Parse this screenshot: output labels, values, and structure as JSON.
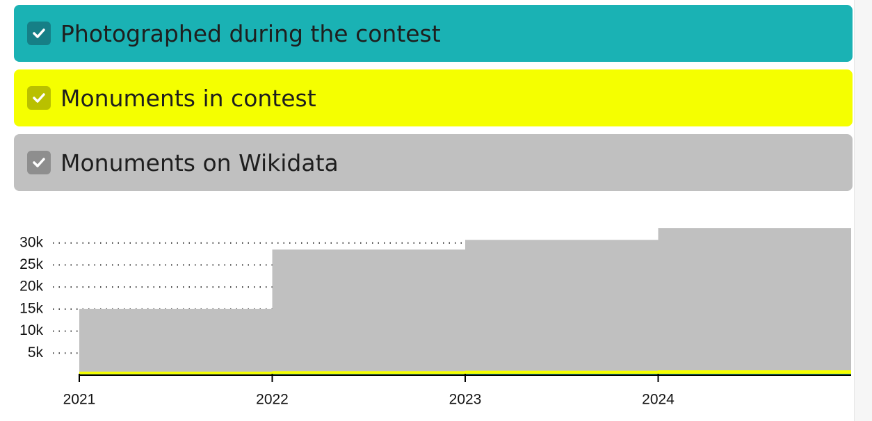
{
  "chart_data": {
    "type": "step-area",
    "x": [
      2021,
      2022,
      2023,
      2024
    ],
    "xlim": [
      2021,
      2025
    ],
    "xticks": [
      2021,
      2022,
      2023,
      2024
    ],
    "ylim": [
      0,
      35000
    ],
    "yticks": [
      {
        "value": 5000,
        "label": "5k"
      },
      {
        "value": 10000,
        "label": "10k"
      },
      {
        "value": 15000,
        "label": "15k"
      },
      {
        "value": 20000,
        "label": "20k"
      },
      {
        "value": 25000,
        "label": "25k"
      },
      {
        "value": 30000,
        "label": "30k"
      }
    ],
    "grid": true,
    "series": [
      {
        "name": "Photographed during the contest",
        "color": "#1ab2b4",
        "check_color": "#167f86",
        "values": [
          200,
          250,
          300,
          300
        ]
      },
      {
        "name": "Monuments in contest",
        "color": "#f5ff00",
        "check_color": "#b9c000",
        "values": [
          800,
          900,
          1000,
          1100
        ]
      },
      {
        "name": "Monuments on Wikidata",
        "color": "#c0c0c0",
        "check_color": "#8e8e8e",
        "values": [
          15000,
          28500,
          30700,
          33400
        ]
      }
    ]
  }
}
